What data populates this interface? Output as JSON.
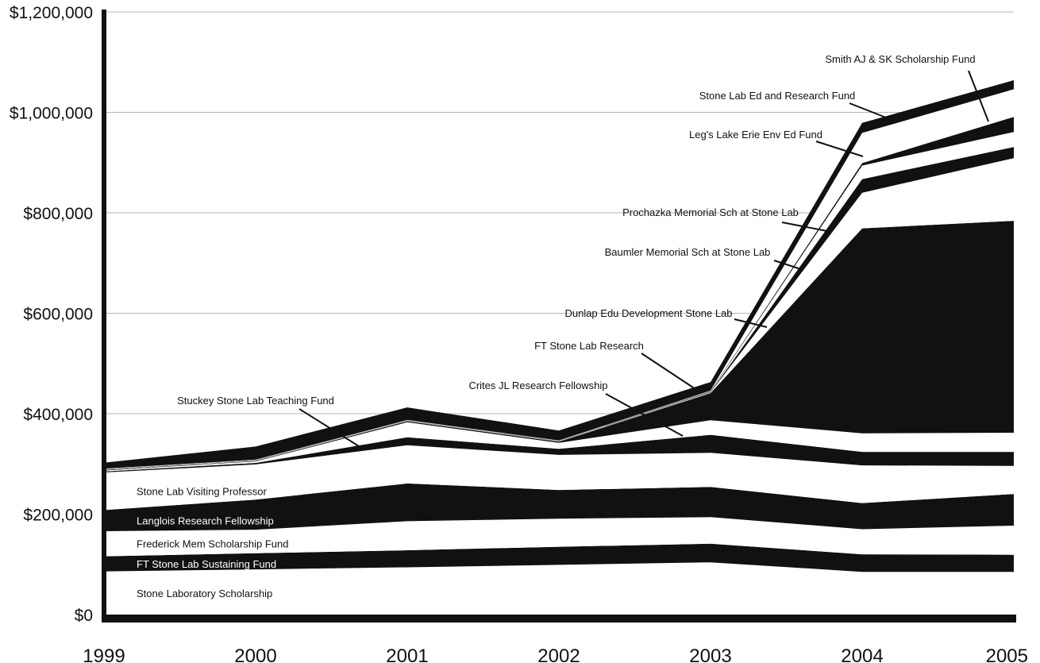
{
  "chart_data": {
    "type": "area",
    "stacked": true,
    "title": "",
    "xlabel": "",
    "ylabel": "",
    "x": [
      "1999",
      "2000",
      "2001",
      "2002",
      "2003",
      "2004",
      "2005"
    ],
    "ylim": [
      0,
      1200000
    ],
    "y_ticks": [
      {
        "value": 0,
        "label": "$0"
      },
      {
        "value": 200000,
        "label": "$200,000"
      },
      {
        "value": 400000,
        "label": "$400,000"
      },
      {
        "value": 600000,
        "label": "$600,000"
      },
      {
        "value": 800000,
        "label": "$800,000"
      },
      {
        "value": 1000000,
        "label": "$1,000,000"
      },
      {
        "value": 1200000,
        "label": "$1,200,000"
      }
    ],
    "grid": "horizontal",
    "series": [
      {
        "name": "Stone Laboratory Scholarship",
        "fill": "#ffffff",
        "values": [
          86000,
          90000,
          94000,
          99000,
          104000,
          85000,
          85000
        ]
      },
      {
        "name": "FT Stone Lab Sustaining Fund",
        "fill": "#111111",
        "values": [
          30000,
          32000,
          34000,
          36000,
          37000,
          35000,
          34000
        ]
      },
      {
        "name": "Frederick Mem Scholarship Fund",
        "fill": "#ffffff",
        "values": [
          50000,
          47000,
          58000,
          56000,
          53000,
          50000,
          58000
        ]
      },
      {
        "name": "Langlois Research Fellowship",
        "fill": "#111111",
        "values": [
          42000,
          60000,
          75000,
          57000,
          60000,
          52000,
          63000
        ]
      },
      {
        "name": "Stone Lab Visiting Professor",
        "fill": "#ffffff",
        "values": [
          75000,
          70000,
          76000,
          70000,
          68000,
          75000,
          56000
        ]
      },
      {
        "name": "Stuckey Stone Lab Teaching Fund",
        "fill": "#111111",
        "values": [
          2000,
          3000,
          16000,
          12000,
          36000,
          27000,
          28000
        ]
      },
      {
        "name": "Crites JL Research Fellowship",
        "fill": "#ffffff",
        "values": [
          2000,
          3000,
          30000,
          12000,
          29000,
          37000,
          38000
        ]
      },
      {
        "name": "FT Stone Lab Research",
        "fill": "#111111",
        "values": [
          1000,
          1000,
          2000,
          2000,
          54000,
          408000,
          422000
        ]
      },
      {
        "name": "Dunlap Edu Development Stone Lab",
        "fill": "#ffffff",
        "values": [
          500,
          500,
          500,
          500,
          1000,
          71000,
          125000
        ]
      },
      {
        "name": "Baumler Memorial Sch at Stone Lab",
        "fill": "#111111",
        "values": [
          500,
          500,
          500,
          500,
          1000,
          27000,
          22000
        ]
      },
      {
        "name": "Prochazka Memorial Sch at Stone Lab",
        "fill": "#ffffff",
        "values": [
          500,
          500,
          500,
          500,
          1000,
          27000,
          30000
        ]
      },
      {
        "name": "Leg's Lake Erie Env Ed Fund",
        "fill": "#111111",
        "values": [
          500,
          500,
          500,
          500,
          1000,
          5000,
          30000
        ]
      },
      {
        "name": "Smith AJ & SK Scholarship Fund",
        "fill": "#ffffff",
        "values": [
          500,
          500,
          500,
          500,
          1000,
          60000,
          55000
        ]
      },
      {
        "name": "Stone Lab Ed and Research Fund",
        "fill": "#111111",
        "values": [
          12000,
          26000,
          25000,
          20000,
          17000,
          20000,
          18000
        ]
      }
    ],
    "inside_labels": [
      {
        "text": "Stone Laboratory Scholarship",
        "series": 0
      },
      {
        "text": "FT Stone Lab Sustaining Fund",
        "series": 1
      },
      {
        "text": "Frederick Mem Scholarship Fund",
        "series": 2
      },
      {
        "text": "Langlois Research Fellowship",
        "series": 3
      },
      {
        "text": "Stone Lab Visiting Professor",
        "series": 4
      }
    ],
    "callouts": [
      {
        "text": "Stuckey Stone Lab Teaching Fund",
        "series": 5
      },
      {
        "text": "Crites JL Research Fellowship",
        "series": 6
      },
      {
        "text": "FT Stone Lab Research",
        "series": 7
      },
      {
        "text": "Dunlap Edu Development Stone Lab",
        "series": 8
      },
      {
        "text": "Baumler Memorial Sch at Stone Lab",
        "series": 9
      },
      {
        "text": "Prochazka Memorial Sch at Stone Lab",
        "series": 10
      },
      {
        "text": "Leg's Lake Erie Env Ed Fund",
        "series": 11
      },
      {
        "text": "Stone Lab Ed and Research Fund",
        "series": 13
      },
      {
        "text": "Smith AJ & SK Scholarship Fund",
        "series": 12
      }
    ]
  }
}
